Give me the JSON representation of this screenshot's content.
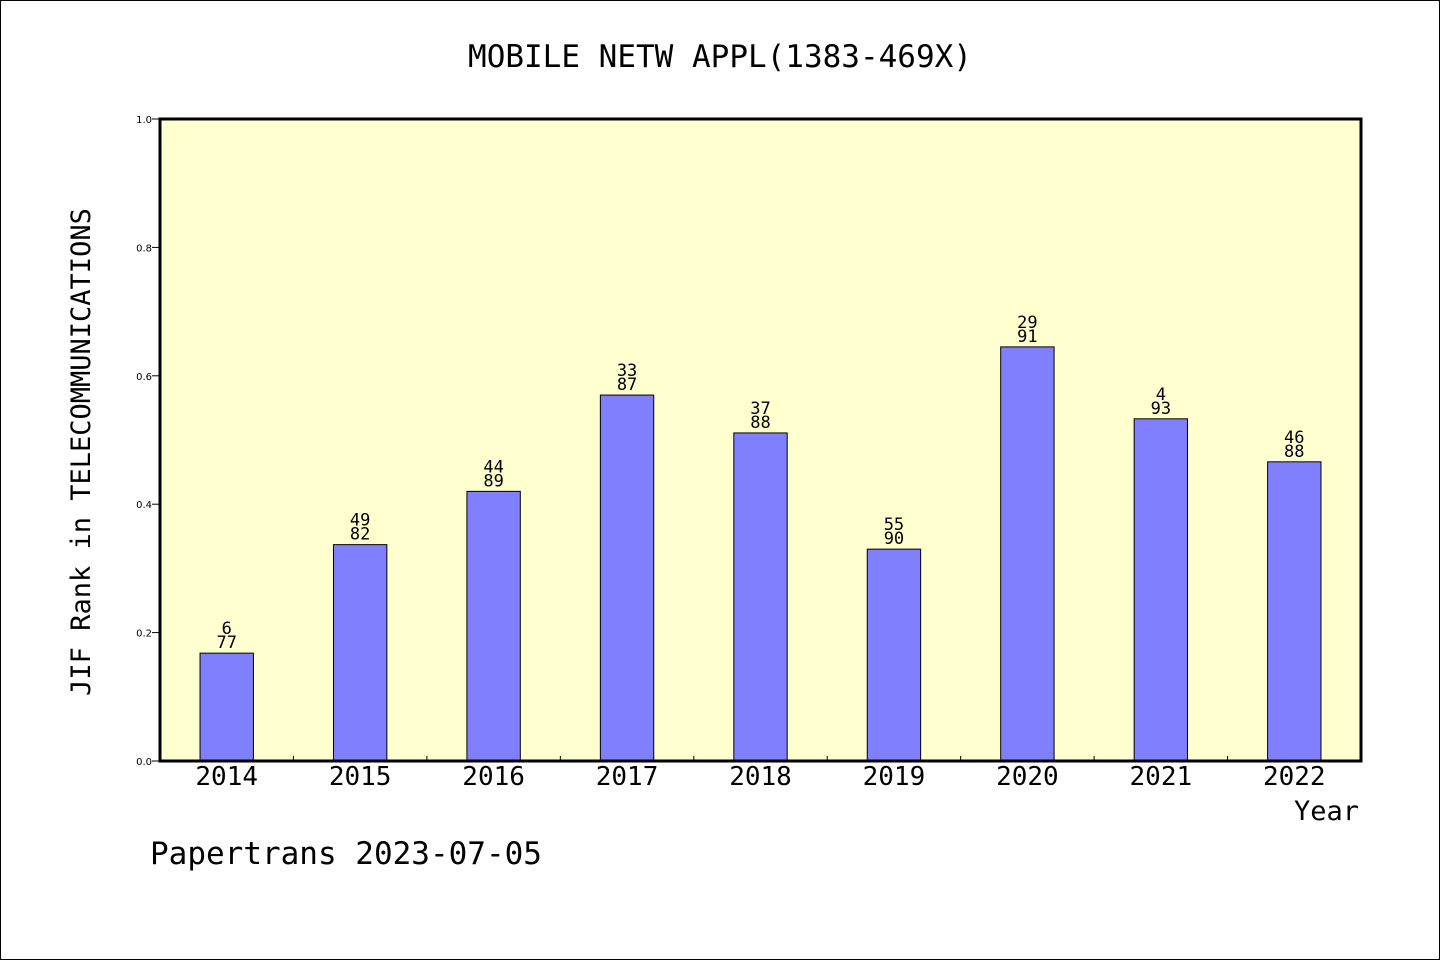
{
  "chart_data": {
    "type": "bar",
    "title": "MOBILE NETW APPL(1383-469X)",
    "xlabel": "Year",
    "ylabel": "JIF Rank in TELECOMMUNICATIONS",
    "ylim": [
      0,
      1.0
    ],
    "yticks": [
      "0.0",
      "0.2",
      "0.4",
      "0.6",
      "0.8",
      "1.0"
    ],
    "categories": [
      "2014",
      "2015",
      "2016",
      "2017",
      "2018",
      "2019",
      "2020",
      "2021",
      "2022"
    ],
    "values": [
      0.168,
      0.337,
      0.42,
      0.57,
      0.511,
      0.33,
      0.645,
      0.533,
      0.466
    ],
    "labels": [
      [
        "6",
        "77"
      ],
      [
        "49",
        "82"
      ],
      [
        "44",
        "89"
      ],
      [
        "33",
        "87"
      ],
      [
        "37",
        "88"
      ],
      [
        "55",
        "90"
      ],
      [
        "29",
        "91"
      ],
      [
        "4",
        "93"
      ],
      [
        "46",
        "88"
      ]
    ],
    "colors": {
      "plot_bg": "#FFFFD0",
      "bar": "#8080FF",
      "bar_edge": "#000000"
    }
  },
  "footer": "Papertrans 2023-07-05"
}
